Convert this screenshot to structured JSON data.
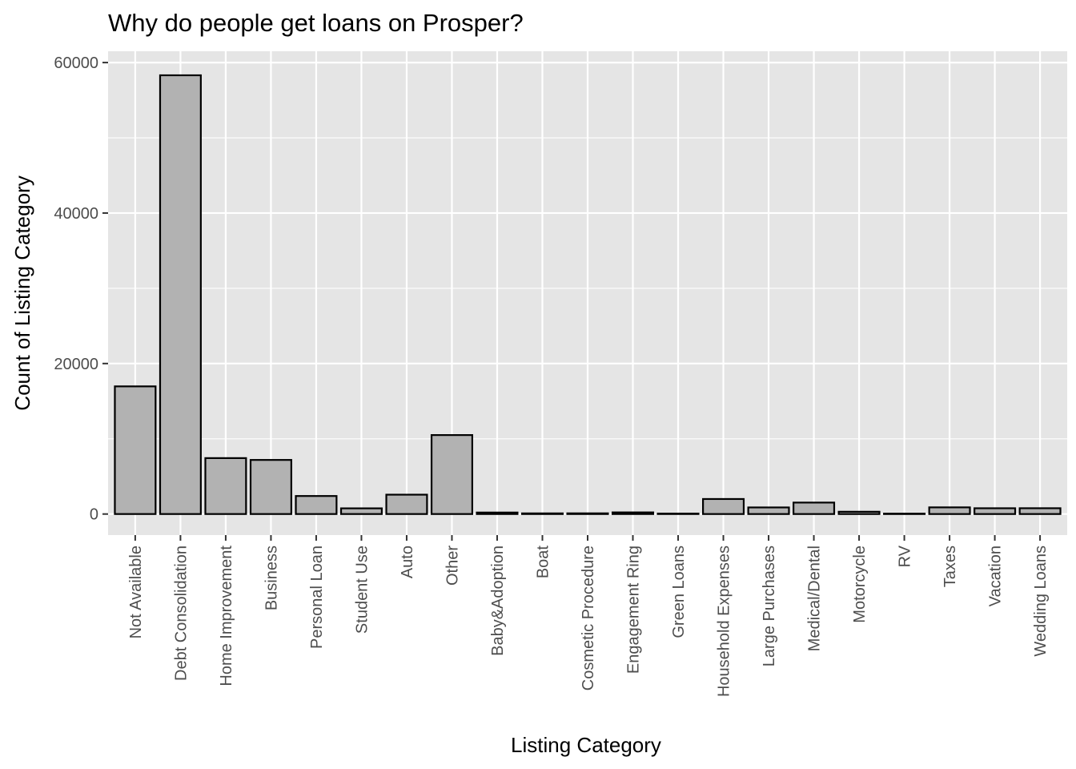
{
  "chart_data": {
    "type": "bar",
    "title": "Why do people get loans on Prosper?",
    "xlabel": "Listing Category",
    "ylabel": "Count of Listing Category",
    "ylim": [
      -2800,
      61500
    ],
    "yticks": [
      0,
      20000,
      40000,
      60000
    ],
    "grid": true,
    "legend": "none",
    "categories": [
      "Not Available",
      "Debt Consolidation",
      "Home Improvement",
      "Business",
      "Personal Loan",
      "Student Use",
      "Auto",
      "Other",
      "Baby&Adoption",
      "Boat",
      "Cosmetic Procedure",
      "Engagement Ring",
      "Green Loans",
      "Household Expenses",
      "Large Purchases",
      "Medical/Dental",
      "Motorcycle",
      "RV",
      "Taxes",
      "Vacation",
      "Wedding Loans"
    ],
    "values": [
      16965,
      58308,
      7433,
      7189,
      2395,
      756,
      2572,
      10494,
      199,
      85,
      91,
      217,
      59,
      1996,
      876,
      1522,
      304,
      52,
      885,
      768,
      771
    ]
  },
  "colors": {
    "panel_background": "#e5e5e5",
    "grid_line": "#ffffff",
    "bar_fill": "#b2b2b2",
    "bar_outline": "#000000",
    "tick_text": "#4d4d4d",
    "tick_mark": "#333333",
    "title_text": "#000000"
  }
}
